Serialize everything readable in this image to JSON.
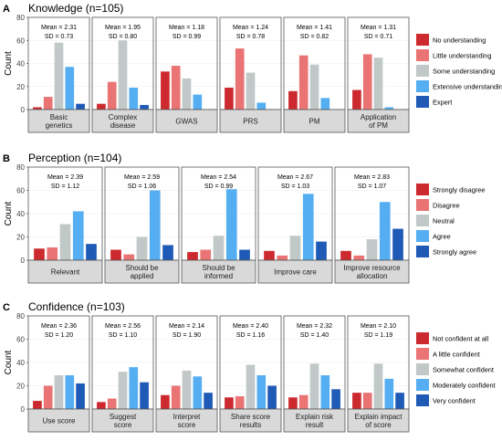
{
  "colors": {
    "levels": [
      "#cc2a2f",
      "#ea7474",
      "#c1c8c8",
      "#56aef2",
      "#1f5bb6"
    ],
    "panel_fill": "#ffffff",
    "panel_border": "#555555",
    "strip_fill": "#d9d9d9"
  },
  "chart_data": [
    {
      "type": "bar",
      "letter": "A",
      "title": "Knowledge (n=105)",
      "ylabel": "Count",
      "ylim": [
        0,
        80
      ],
      "yticks": [
        0,
        20,
        40,
        60,
        80
      ],
      "legend": [
        "No understanding",
        "Little understanding",
        "Some understanding",
        "Extensive understanding",
        "Expert"
      ],
      "facets": [
        {
          "label": [
            "Basic",
            "genetics"
          ],
          "mean": "Mean = 2.31",
          "sd": "SD = 0.73",
          "values": [
            2,
            11,
            58,
            37,
            5
          ]
        },
        {
          "label": [
            "Complex",
            "disease"
          ],
          "mean": "Mean = 1.95",
          "sd": "SD = 0.80",
          "values": [
            5,
            24,
            60,
            19,
            4
          ]
        },
        {
          "label": [
            "GWAS"
          ],
          "mean": "Mean = 1.18",
          "sd": "SD = 0.99",
          "values": [
            33,
            38,
            27,
            13,
            0
          ]
        },
        {
          "label": [
            "PRS"
          ],
          "mean": "Mean = 1.24",
          "sd": "SD = 0.78",
          "values": [
            19,
            53,
            32,
            6,
            0
          ]
        },
        {
          "label": [
            "PM"
          ],
          "mean": "Mean = 1.41",
          "sd": "SD = 0.82",
          "values": [
            16,
            47,
            39,
            10,
            0
          ]
        },
        {
          "label": [
            "Application",
            "of PM"
          ],
          "mean": "Mean = 1.31",
          "sd": "SD = 0.71",
          "values": [
            17,
            48,
            45,
            2,
            0
          ]
        }
      ]
    },
    {
      "type": "bar",
      "letter": "B",
      "title": "Perception (n=104)",
      "ylabel": "Count",
      "ylim": [
        0,
        80
      ],
      "yticks": [
        0,
        20,
        40,
        60,
        80
      ],
      "legend": [
        "Strongly disagree",
        "Disagree",
        "Neutral",
        "Agree",
        "Strongly agree"
      ],
      "facets": [
        {
          "label": [
            "Relevant"
          ],
          "mean": "Mean = 2.39",
          "sd": "SD = 1.12",
          "values": [
            10,
            11,
            31,
            42,
            14
          ]
        },
        {
          "label": [
            "Should be",
            "applied"
          ],
          "mean": "Mean = 2.59",
          "sd": "SD = 1.06",
          "values": [
            9,
            5,
            20,
            60,
            13
          ]
        },
        {
          "label": [
            "Should be",
            "informed"
          ],
          "mean": "Mean = 2.54",
          "sd": "SD = 0.99",
          "values": [
            7,
            9,
            21,
            61,
            9
          ]
        },
        {
          "label": [
            "Improve care"
          ],
          "mean": "Mean = 2.67",
          "sd": "SD = 1.03",
          "values": [
            8,
            4,
            21,
            57,
            16
          ]
        },
        {
          "label": [
            "Improve resource",
            "allocation"
          ],
          "mean": "Mean = 2.83",
          "sd": "SD = 1.07",
          "values": [
            8,
            4,
            18,
            50,
            27
          ]
        }
      ]
    },
    {
      "type": "bar",
      "letter": "C",
      "title": "Confidence (n=103)",
      "ylabel": "Count",
      "ylim": [
        0,
        80
      ],
      "yticks": [
        0,
        20,
        40,
        60,
        80
      ],
      "legend": [
        "Not confident at all",
        "A little confident",
        "Somewhat confident",
        "Moderately confident",
        "Very confident"
      ],
      "facets": [
        {
          "label": [
            "Use score"
          ],
          "mean": "Mean = 2.36",
          "sd": "SD = 1.20",
          "values": [
            7,
            20,
            29,
            29,
            22
          ]
        },
        {
          "label": [
            "Suggest",
            "score"
          ],
          "mean": "Mean = 2.56",
          "sd": "SD = 1.10",
          "values": [
            6,
            9,
            32,
            36,
            23
          ]
        },
        {
          "label": [
            "Interpret",
            "score"
          ],
          "mean": "Mean = 2.14",
          "sd": "SD = 1.90",
          "values": [
            12,
            20,
            33,
            28,
            14
          ]
        },
        {
          "label": [
            "Share score",
            "results"
          ],
          "mean": "Mean = 2.40",
          "sd": "SD = 1.16",
          "values": [
            10,
            11,
            38,
            29,
            20
          ]
        },
        {
          "label": [
            "Explain risk",
            "result"
          ],
          "mean": "Mean = 2.32",
          "sd": "SD = 1.40",
          "values": [
            10,
            12,
            39,
            29,
            17
          ]
        },
        {
          "label": [
            "Explain impact",
            "of score"
          ],
          "mean": "Mean = 2.10",
          "sd": "SD = 1.19",
          "values": [
            14,
            14,
            39,
            26,
            14
          ]
        }
      ]
    }
  ]
}
